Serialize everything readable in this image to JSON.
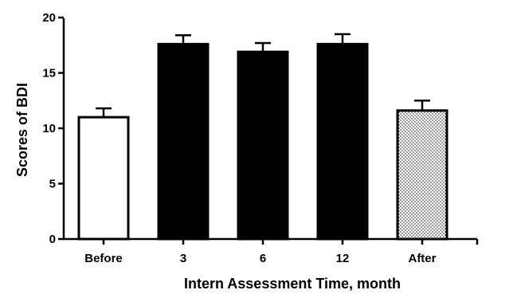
{
  "chart_data": {
    "type": "bar",
    "title": "",
    "xlabel": "Intern Assessment Time, month",
    "ylabel": "Scores of BDI",
    "categories": [
      "Before",
      "3",
      "6",
      "12",
      "After"
    ],
    "values": [
      11.0,
      17.6,
      16.9,
      17.6,
      11.6
    ],
    "error_upper": [
      0.8,
      0.8,
      0.8,
      0.9,
      0.9
    ],
    "fills": [
      "white",
      "black",
      "black",
      "black",
      "dotted"
    ],
    "ylim": [
      0,
      20
    ],
    "yticks": [
      0,
      5,
      10,
      15,
      20
    ],
    "grid": false,
    "legend": "none"
  }
}
